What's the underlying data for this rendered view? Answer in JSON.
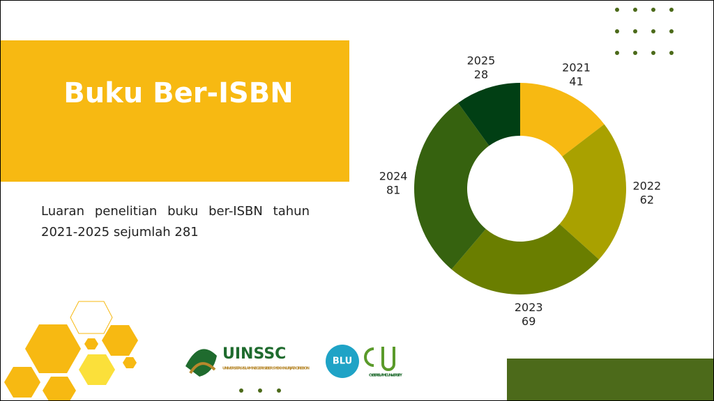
{
  "slide": {
    "title": "Buku Ber-ISBN",
    "description": "Luaran penelitian buku ber-ISBN tahun 2021-2025 sejumlah 281",
    "logo_name": "UINSSC",
    "logo_subtitle": "UNIVERSITAS ISLAM NEGERI SIBER SYEKH NURJATI CIREBON",
    "blu": "BLU",
    "ciu": "CYBER ISLAMIC UNIVERSITY"
  },
  "chart_data": {
    "type": "donut",
    "categories": [
      "2021",
      "2022",
      "2023",
      "2024",
      "2025"
    ],
    "values": [
      41,
      62,
      69,
      81,
      28
    ],
    "colors": [
      "#f7b912",
      "#a9a100",
      "#6a7e00",
      "#36620f",
      "#013f14"
    ]
  }
}
